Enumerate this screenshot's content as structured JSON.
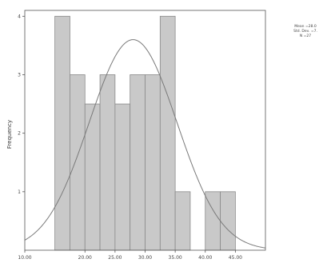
{
  "chart_data": {
    "type": "bar",
    "kind": "histogram",
    "title": "",
    "xlabel": "",
    "ylabel": "Frequency",
    "xlim": [
      10.0,
      50.0
    ],
    "ylim": [
      0,
      4.1
    ],
    "bin_width": 2.5,
    "bins": [
      {
        "start": 15.0,
        "end": 17.5,
        "count": 4
      },
      {
        "start": 17.5,
        "end": 20.0,
        "count": 3
      },
      {
        "start": 20.0,
        "end": 22.5,
        "count": 2.5
      },
      {
        "start": 22.5,
        "end": 25.0,
        "count": 3
      },
      {
        "start": 25.0,
        "end": 27.5,
        "count": 2.5
      },
      {
        "start": 27.5,
        "end": 30.0,
        "count": 3
      },
      {
        "start": 30.0,
        "end": 32.5,
        "count": 3
      },
      {
        "start": 32.5,
        "end": 35.0,
        "count": 4
      },
      {
        "start": 35.0,
        "end": 37.5,
        "count": 1
      },
      {
        "start": 40.0,
        "end": 42.5,
        "count": 1
      },
      {
        "start": 42.5,
        "end": 45.0,
        "count": 1
      }
    ],
    "x_ticks": [
      {
        "value": 10.0,
        "label": "10.00"
      },
      {
        "value": 20.0,
        "label": "20.00"
      },
      {
        "value": 25.0,
        "label": "25.00"
      },
      {
        "value": 30.0,
        "label": "30.00"
      },
      {
        "value": 35.0,
        "label": "35.00"
      },
      {
        "value": 40.0,
        "label": "40.00"
      },
      {
        "value": 45.0,
        "label": "45.00"
      }
    ],
    "y_ticks": [
      {
        "value": 1,
        "label": "1"
      },
      {
        "value": 2,
        "label": "2"
      },
      {
        "value": 3,
        "label": "3"
      },
      {
        "value": 4,
        "label": "4"
      }
    ],
    "normal_curve": {
      "mean": 28.0,
      "std_dev": 7.3,
      "n": 27,
      "peak": 3.6
    },
    "stats_box": {
      "lines": [
        "Mean =28.0",
        "Std. Dev. =7.",
        "N =27"
      ],
      "placement": "top-right, outside plot"
    },
    "grid": false,
    "colors": {
      "bar_fill": "#c9c9c9",
      "bar_stroke": "#8a8a8a",
      "curve": "#7a7a7a",
      "axis": "#555555"
    }
  }
}
